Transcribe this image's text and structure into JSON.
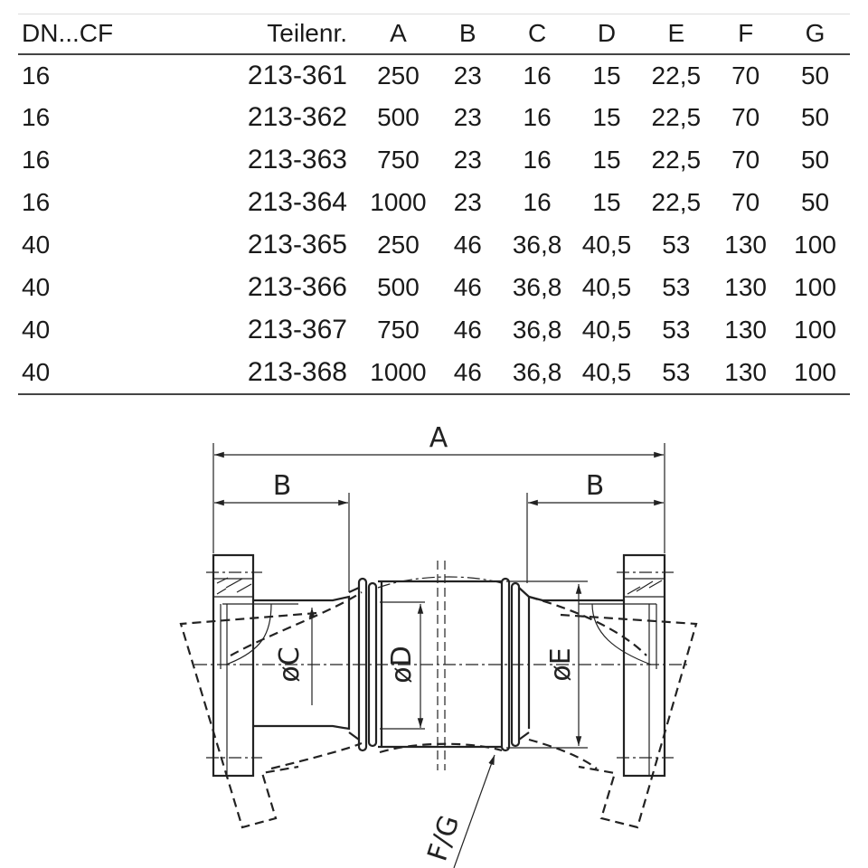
{
  "table": {
    "headers": [
      "DN...CF",
      "Teilenr.",
      "A",
      "B",
      "C",
      "D",
      "E",
      "F",
      "G"
    ],
    "rows": [
      [
        "16",
        "213-361",
        "250",
        "23",
        "16",
        "15",
        "22,5",
        "70",
        "50"
      ],
      [
        "16",
        "213-362",
        "500",
        "23",
        "16",
        "15",
        "22,5",
        "70",
        "50"
      ],
      [
        "16",
        "213-363",
        "750",
        "23",
        "16",
        "15",
        "22,5",
        "70",
        "50"
      ],
      [
        "16",
        "213-364",
        "1000",
        "23",
        "16",
        "15",
        "22,5",
        "70",
        "50"
      ],
      [
        "40",
        "213-365",
        "250",
        "46",
        "36,8",
        "40,5",
        "53",
        "130",
        "100"
      ],
      [
        "40",
        "213-366",
        "500",
        "46",
        "36,8",
        "40,5",
        "53",
        "130",
        "100"
      ],
      [
        "40",
        "213-367",
        "750",
        "46",
        "36,8",
        "40,5",
        "53",
        "130",
        "100"
      ],
      [
        "40",
        "213-368",
        "1000",
        "46",
        "36,8",
        "40,5",
        "53",
        "130",
        "100"
      ]
    ]
  },
  "drawing": {
    "dim_a": "A",
    "dim_b_left": "B",
    "dim_b_right": "B",
    "dim_c": "øC",
    "dim_d": "øD",
    "dim_e": "øE",
    "dim_fg": "F/G"
  }
}
